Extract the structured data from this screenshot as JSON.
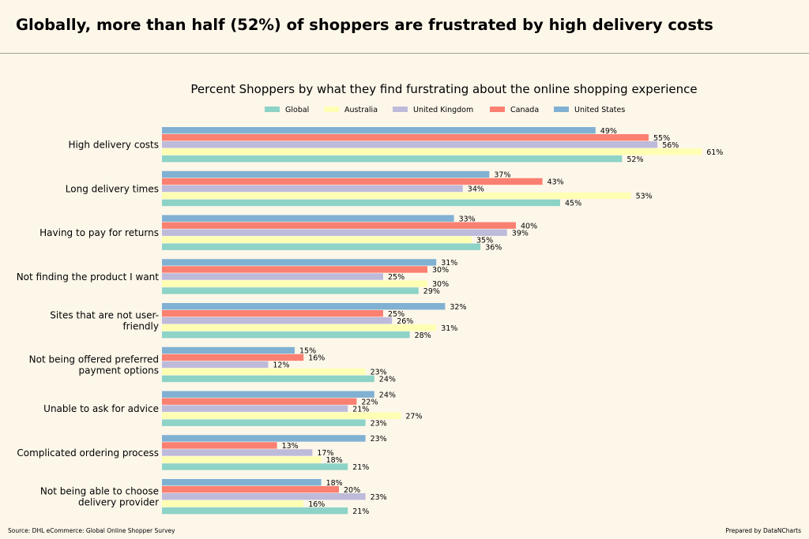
{
  "headline": "Globally, more than half (52%) of shoppers are frustrated by high delivery costs",
  "source": "Source: DHL eCommerce: Global Online Shopper Survey",
  "credit": "Prepared by DataNCharts",
  "colors": {
    "Global": "#8dd3c7",
    "Australia": "#ffffb3",
    "United Kingdom": "#bebada",
    "Canada": "#fb8072",
    "United States": "#80b1d3"
  },
  "chart_data": {
    "type": "bar",
    "orientation": "horizontal",
    "title": "Percent Shoppers by what they find furstrating about the online shopping experience",
    "legend_position": "top",
    "value_suffix": "%",
    "xlim": [
      0,
      70
    ],
    "categories": [
      [
        "High delivery costs"
      ],
      [
        "Long delivery times"
      ],
      [
        "Having to pay for returns"
      ],
      [
        "Not finding the product I want"
      ],
      [
        "Sites that are not user-",
        "friendly"
      ],
      [
        "Not being offered preferred",
        "payment options"
      ],
      [
        "Unable to ask for advice"
      ],
      [
        "Complicated ordering process"
      ],
      [
        "Not being able to choose",
        "delivery provider"
      ]
    ],
    "series": [
      {
        "name": "Global",
        "values": [
          52,
          45,
          36,
          29,
          28,
          24,
          23,
          21,
          21
        ]
      },
      {
        "name": "Australia",
        "values": [
          61,
          53,
          35,
          30,
          31,
          23,
          27,
          18,
          16
        ]
      },
      {
        "name": "United Kingdom",
        "values": [
          56,
          34,
          39,
          25,
          26,
          12,
          21,
          17,
          23
        ]
      },
      {
        "name": "Canada",
        "values": [
          55,
          43,
          40,
          30,
          25,
          16,
          22,
          13,
          20
        ]
      },
      {
        "name": "United States",
        "values": [
          49,
          37,
          33,
          31,
          32,
          15,
          24,
          23,
          18
        ]
      }
    ]
  }
}
